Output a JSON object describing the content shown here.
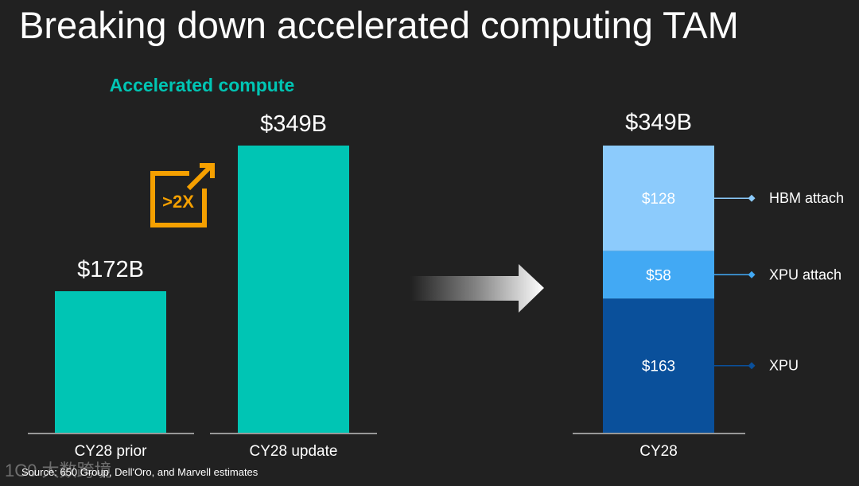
{
  "slide": {
    "title": "Breaking down accelerated computing TAM",
    "source_note": "Source: 650 Group, Dell'Oro, and Marvell estimates",
    "watermark": "1C0 大数跨境",
    "growth_badge": ">2X",
    "colors": {
      "background": "#212121",
      "teal": "#00c5b4",
      "orange": "#f5a000",
      "xpu": "#0a509b",
      "xpu_attach": "#42a9f4",
      "hbm_attach": "#8ccbfc"
    }
  },
  "chart_data": [
    {
      "type": "bar",
      "title": "Accelerated compute",
      "categories": [
        "CY28 prior",
        "CY28 update"
      ],
      "values": [
        172,
        349
      ],
      "value_labels": [
        "$172B",
        "$349B"
      ],
      "unit": "$B",
      "ylim": [
        0,
        349
      ],
      "grid": false
    },
    {
      "type": "bar",
      "stacked": true,
      "categories": [
        "CY28"
      ],
      "total_label": "$349B",
      "series": [
        {
          "name": "XPU",
          "values": [
            163
          ],
          "value_label": "$163",
          "color": "#0a509b"
        },
        {
          "name": "XPU attach",
          "values": [
            58
          ],
          "value_label": "$58",
          "color": "#42a9f4"
        },
        {
          "name": "HBM attach",
          "values": [
            128
          ],
          "value_label": "$128",
          "color": "#8ccbfc"
        }
      ],
      "ylim": [
        0,
        349
      ],
      "legend": "right",
      "grid": false
    }
  ]
}
